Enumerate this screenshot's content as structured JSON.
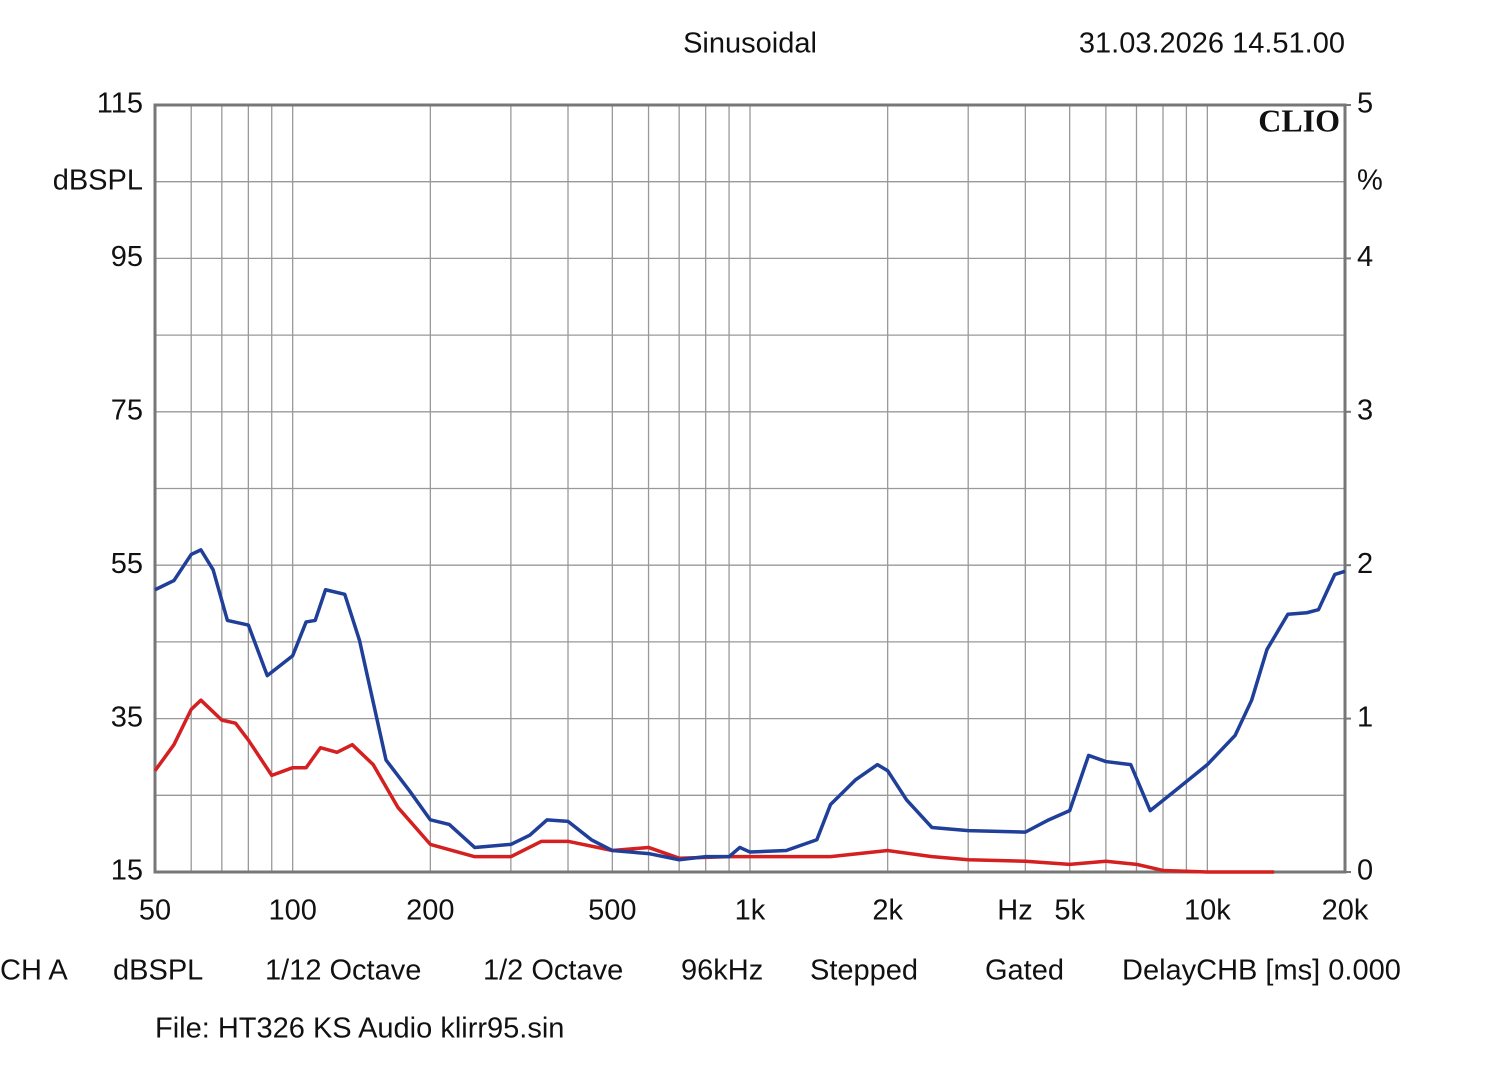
{
  "chart_data": {
    "type": "line",
    "title": "Sinusoidal",
    "timestamp": "31.03.2026 14.51.00",
    "logo": "CLIO",
    "x_label": "Hz",
    "y_label": "dBSPL",
    "y2_label": "%",
    "xscale": "log",
    "xlim": [
      50,
      20000
    ],
    "xticks": [
      50,
      100,
      200,
      500,
      {
        "value": 1000,
        "label": "1k"
      },
      {
        "value": 2000,
        "label": "2k"
      },
      {
        "value": 5000,
        "label": "5k"
      },
      {
        "value": 10000,
        "label": "10k"
      },
      {
        "value": 20000,
        "label": "20k"
      }
    ],
    "xminorticks": [
      60,
      70,
      80,
      90,
      300,
      400,
      600,
      700,
      800,
      900,
      3000,
      4000,
      6000,
      7000,
      8000,
      9000
    ],
    "ylim": [
      15,
      115
    ],
    "yticks": [
      15,
      35,
      55,
      75,
      95,
      115
    ],
    "yminorticks": [
      25,
      45,
      65,
      85,
      105
    ],
    "y2lim": [
      0,
      5
    ],
    "y2ticks": [
      0,
      1,
      2,
      3,
      4,
      5
    ],
    "grid": true,
    "series": [
      {
        "color": "#1f3f99",
        "axis": "y2",
        "x": [
          50,
          55,
          60,
          63,
          67,
          72,
          80,
          88,
          100,
          107,
          112,
          118,
          130,
          140,
          160,
          180,
          200,
          220,
          250,
          300,
          330,
          360,
          400,
          450,
          500,
          600,
          700,
          800,
          900,
          950,
          1000,
          1200,
          1400,
          1500,
          1700,
          1900,
          2000,
          2200,
          2500,
          3000,
          4000,
          4500,
          5000,
          5500,
          6000,
          6800,
          7500,
          8500,
          10000,
          11500,
          12500,
          13500,
          15000,
          16500,
          17500,
          19000,
          20000
        ],
        "values": [
          1.84,
          1.9,
          2.07,
          2.1,
          1.97,
          1.64,
          1.61,
          1.28,
          1.41,
          1.63,
          1.64,
          1.84,
          1.81,
          1.51,
          0.73,
          0.53,
          0.34,
          0.31,
          0.16,
          0.18,
          0.24,
          0.34,
          0.33,
          0.21,
          0.14,
          0.12,
          0.08,
          0.1,
          0.1,
          0.16,
          0.13,
          0.14,
          0.21,
          0.44,
          0.6,
          0.7,
          0.66,
          0.47,
          0.29,
          0.27,
          0.26,
          0.34,
          0.4,
          0.76,
          0.72,
          0.7,
          0.4,
          0.53,
          0.7,
          0.89,
          1.12,
          1.45,
          1.68,
          1.69,
          1.71,
          1.94,
          1.96
        ]
      },
      {
        "color": "#d42020",
        "axis": "y2",
        "x": [
          50,
          55,
          60,
          63,
          70,
          75,
          80,
          90,
          100,
          107,
          115,
          125,
          135,
          150,
          170,
          200,
          250,
          300,
          350,
          400,
          500,
          600,
          700,
          900,
          1000,
          1500,
          2000,
          2500,
          3000,
          4000,
          5000,
          6000,
          7000,
          8000,
          10000,
          14000
        ],
        "values": [
          0.66,
          0.83,
          1.06,
          1.12,
          0.99,
          0.97,
          0.86,
          0.63,
          0.68,
          0.68,
          0.81,
          0.78,
          0.83,
          0.7,
          0.42,
          0.18,
          0.1,
          0.1,
          0.2,
          0.2,
          0.14,
          0.16,
          0.09,
          0.1,
          0.1,
          0.1,
          0.14,
          0.1,
          0.08,
          0.07,
          0.05,
          0.07,
          0.05,
          0.01,
          0,
          0
        ]
      }
    ],
    "settings": [
      "CH A",
      "dBSPL",
      "1/12 Octave",
      "1/2 Octave",
      "96kHz",
      "Stepped",
      "Gated",
      "DelayCHB [ms] 0.000"
    ],
    "file": "File: HT326 KS Audio klirr95.sin"
  }
}
